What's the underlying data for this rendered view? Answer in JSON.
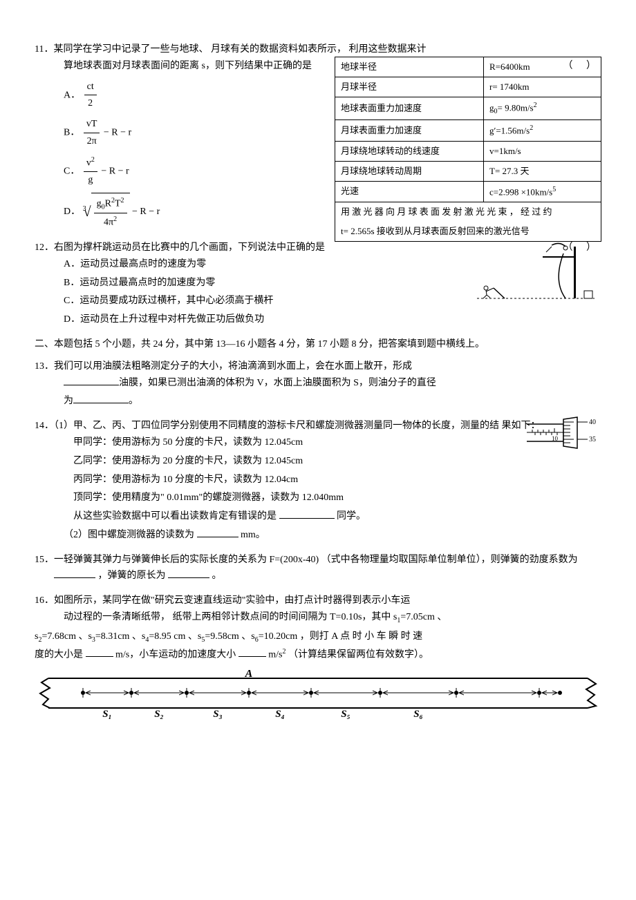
{
  "q11": {
    "number": "11．",
    "text_line1": "某同学在学习中记录了一些与地球、    月球有关的数据资料如表所示，    利用这些数据来计",
    "text_line2": "算地球表面对月球表面间的距离    s，则下列结果中正确的是",
    "paren": "（    ）",
    "optA_label": "A．",
    "optB_label": "B．",
    "optB_tail": " − R − r",
    "optC_label": "C．",
    "optC_tail": " − R − r",
    "optD_label": "D．",
    "optD_tail": " − R − r",
    "fracA_num": "ct",
    "fracA_den": "2",
    "fracB_num": "vT",
    "fracB_den": "2π",
    "fracC_num": "v",
    "fracC_sup": "2",
    "fracC_den": "g",
    "rootD_idx": "3",
    "fracD_num_p1": "g",
    "fracD_num_sub0": "0",
    "fracD_num_p2": "R",
    "fracD_num_sup2": "2",
    "fracD_num_p3": "T",
    "fracD_num_sup2b": "2",
    "fracD_den_p1": "4π",
    "fracD_den_sup": "2",
    "table": {
      "rows": [
        {
          "l": "地球半径",
          "r_pre": "R=6400km"
        },
        {
          "l": "月球半径",
          "r_pre": "r= 1740km"
        },
        {
          "l": "地球表面重力加速度",
          "r_pre": "g",
          "r_sub": "0",
          "r_post": "= 9.80m/s",
          "r_sup": "2"
        },
        {
          "l": "月球表面重力加速度",
          "r_pre": "g′=1.56m/s",
          "r_sup": "2"
        },
        {
          "l": "月球绕地球转动的线速度",
          "r_pre": "v=1km/s"
        },
        {
          "l": "月球绕地球转动周期",
          "r_pre": "T= 27.3 天"
        },
        {
          "l": "光速",
          "r_pre": "c=2.998 ×10",
          "r_sup": "5",
          "r_post": "km/s"
        }
      ],
      "merged_line1": "用 激 光 器 向 月 球 表 面 发 射 激 光 光 束 ， 经 过 约",
      "merged_line2": "t= 2.565s 接收到从月球表面反射回来的激光信号"
    }
  },
  "q12": {
    "number": "12．",
    "text": "右图为撑杆跳运动员在比赛中的几个画面，下列说法中正确的是",
    "paren": "（    ）",
    "optA": "A．运动员过最高点时的速度为零",
    "optB": "B．运动员过最高点时的加速度为零",
    "optC": "C．运动员要成功跃过横杆，其中心必须高于横杆",
    "optD": "D．运动员在上升过程中对杆先做正功后做负功",
    "fig_colors": {
      "stroke": "#000000",
      "dash": "#000000"
    }
  },
  "section2": {
    "text": "二、本题包括    5 个小题，共    24 分，其中第    13—16 小题各    4 分，第    17 小题    8 分，把答案填到题中横线上。"
  },
  "q13": {
    "number": "13．",
    "text": "我们可以用油膜法粗略测定分子的大小，将油滴滴到水面上，会在水面上散开，形成",
    "line2_mid": "油膜，如果已测出油滴的体积为    V，水面上油膜面积为    S，则油分子的直径",
    "line3_pre": "为",
    "line3_post": "。"
  },
  "q14": {
    "number": "14．",
    "intro": "（1）甲、乙、丙、丁四位同学分别使用不同精度的游标卡尺和螺旋测微器测量同一物体的长度，测量的结    果如下：",
    "jia": "甲同学：使用游标为    50 分度的卡尺，读数为    12.045cm",
    "yi": "乙同学：使用游标为    20 分度的卡尺，读数为    12.045cm",
    "bing": "丙同学：使用游标为    10 分度的卡尺，读数为    12.04cm",
    "ding": "顶同学：使用精度为\"    0.01mm\"的螺旋测微器，读数为    12.040mm",
    "conclusion_pre": "从这些实验数据中可以看出读数肯定有错误的是",
    "conclusion_post": "同学。",
    "part2_pre": "（2）图中螺旋测微器的读数为",
    "part2_post": "mm。",
    "micrometer": {
      "top_tick": "40",
      "bottom_tick": "35",
      "main_tick": "10",
      "stroke": "#000000"
    }
  },
  "q15": {
    "number": "15．",
    "text": "一轻弹簧其弹力与弹簧伸长后的实际长度的关系为    F=(200x-40) （式中各物理量均取国际单位制单位），则弹簧的劲度系数为",
    "mid": "，弹簧的原长为",
    "post": "。"
  },
  "q16": {
    "number": "16．",
    "line1": "如图所示，某同学在做\"研究云变速直线运动\"实验中，由打点计时器得到表示小车运",
    "line2": "动过程的一条清晰纸带，    纸带上两相邻计数点间的时间间隔为    T=0.10s，其中 s",
    "line2_sub1": "1",
    "line2_post1": "=7.05cm 、",
    "line3_p1": "s",
    "line3_sub2": "2",
    "line3_p2": "=7.68cm 、s",
    "line3_sub3": "3",
    "line3_p3": "=8.31cm 、s",
    "line3_sub4": "4",
    "line3_p4": "=8.95  cm 、s",
    "line3_sub5": "5",
    "line3_p5": "=9.58cm 、s",
    "line3_sub6": "6",
    "line3_p6": "=10.20cm ，则打  A  点 时 小 车 瞬 时 速",
    "line4_pre": "度的大小是",
    "line4_mid": "m/s，小车运动的加速度大小",
    "line4_unit_pre": "m/s",
    "line4_unit_sup": "2",
    "line4_post": "（计算结果保留两位有效数字）。",
    "tape": {
      "labels": [
        "S₁",
        "S₂",
        "S₃",
        "S₄",
        "S₅",
        "S₆"
      ],
      "point_A": "A",
      "stroke": "#000000",
      "positions": [
        70,
        140,
        220,
        310,
        400,
        500,
        610,
        730
      ],
      "italic": true
    }
  }
}
